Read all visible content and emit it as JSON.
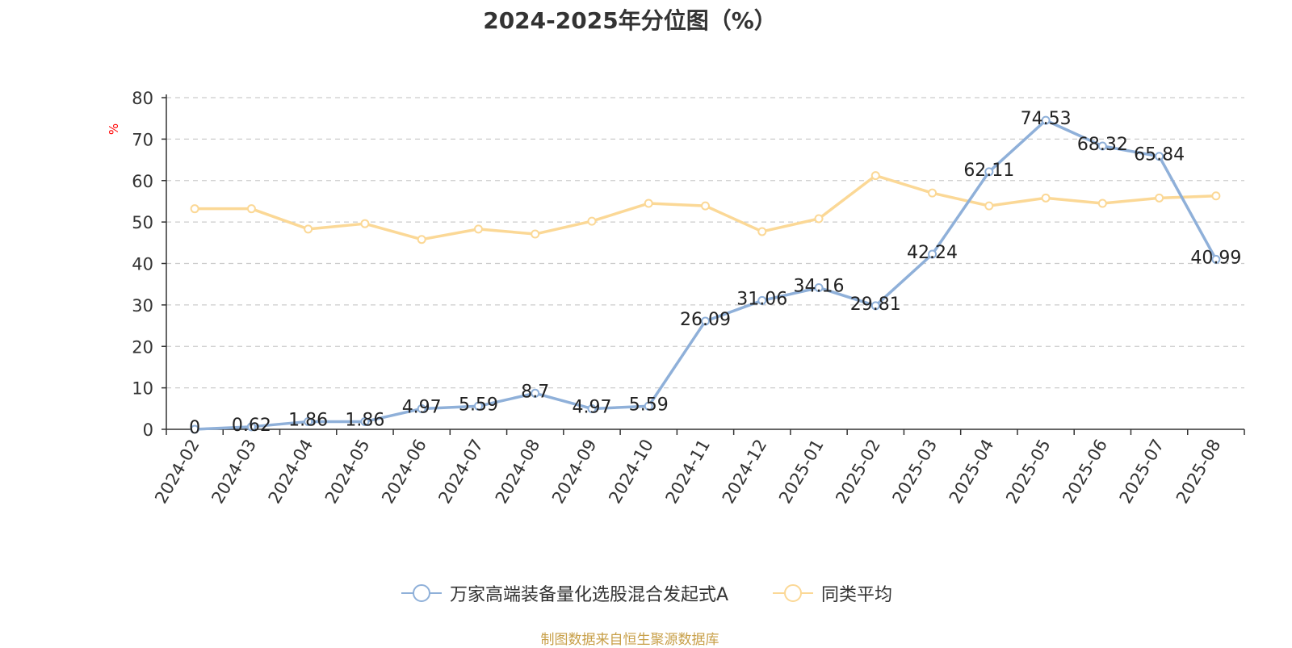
{
  "chart_data": {
    "type": "line",
    "title": "2024-2025年分位图（%）",
    "ylabel": "%",
    "xlabel": "",
    "ylim": [
      0,
      80
    ],
    "yticks": [
      0,
      10,
      20,
      30,
      40,
      50,
      60,
      70,
      80
    ],
    "grid": "horizontal-dashed",
    "legend_position": "bottom-center",
    "categories": [
      "2024-02",
      "2024-03",
      "2024-04",
      "2024-05",
      "2024-06",
      "2024-07",
      "2024-08",
      "2024-09",
      "2024-10",
      "2024-11",
      "2024-12",
      "2025-01",
      "2025-02",
      "2025-03",
      "2025-04",
      "2025-05",
      "2025-06",
      "2025-07",
      "2025-08"
    ],
    "series": [
      {
        "name": "万家高端装备量化选股混合发起式A",
        "color": "#8fb0d9",
        "show_labels": true,
        "values": [
          0,
          0.62,
          1.86,
          1.86,
          4.97,
          5.59,
          8.7,
          4.97,
          5.59,
          26.09,
          31.06,
          34.16,
          29.81,
          42.24,
          62.11,
          74.53,
          68.32,
          65.84,
          40.99
        ]
      },
      {
        "name": "同类平均",
        "color": "#fbd896",
        "show_labels": false,
        "values": [
          53.2,
          53.2,
          48.3,
          49.6,
          45.8,
          48.3,
          47.1,
          50.2,
          54.5,
          53.9,
          47.7,
          50.8,
          61.2,
          57.0,
          53.9,
          55.8,
          54.5,
          55.8,
          56.3
        ]
      }
    ]
  },
  "source_note": "制图数据来自恒生聚源数据库"
}
